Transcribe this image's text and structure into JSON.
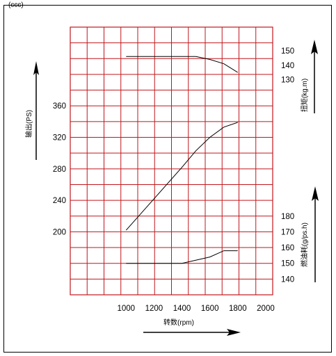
{
  "header": {
    "cropped_text": "(ccc)"
  },
  "chart_data": {
    "type": "line",
    "xlabel": "转数(rpm)",
    "x_ticks": [
      1000,
      1200,
      1400,
      1600,
      1800,
      2000
    ],
    "xlim": [
      600,
      2050
    ],
    "grid": true,
    "grid_color": "#c0161b",
    "axes": {
      "output": {
        "label": "输出(PS)",
        "ticks": [
          200,
          240,
          280,
          320,
          360
        ],
        "range": [
          160,
          400
        ]
      },
      "torque": {
        "label": "扭矩(kg.m)",
        "ticks": [
          130,
          140,
          150
        ]
      },
      "fuel": {
        "label": "燃油耗(g/ps.h)",
        "ticks": [
          140,
          150,
          160,
          170,
          180
        ]
      }
    },
    "series": [
      {
        "axis": "output",
        "x": [
          1000,
          1200,
          1400,
          1500,
          1600,
          1700,
          1800
        ],
        "y": [
          202,
          242,
          282,
          303,
          320,
          333,
          339
        ]
      },
      {
        "axis": "torque",
        "x": [
          1000,
          1500,
          1600,
          1700,
          1800
        ],
        "y": [
          146,
          146,
          144,
          141,
          135
        ]
      },
      {
        "axis": "fuel",
        "x": [
          1000,
          1400,
          1600,
          1700,
          1800
        ],
        "y": [
          150,
          150,
          154,
          158,
          158
        ]
      }
    ]
  }
}
